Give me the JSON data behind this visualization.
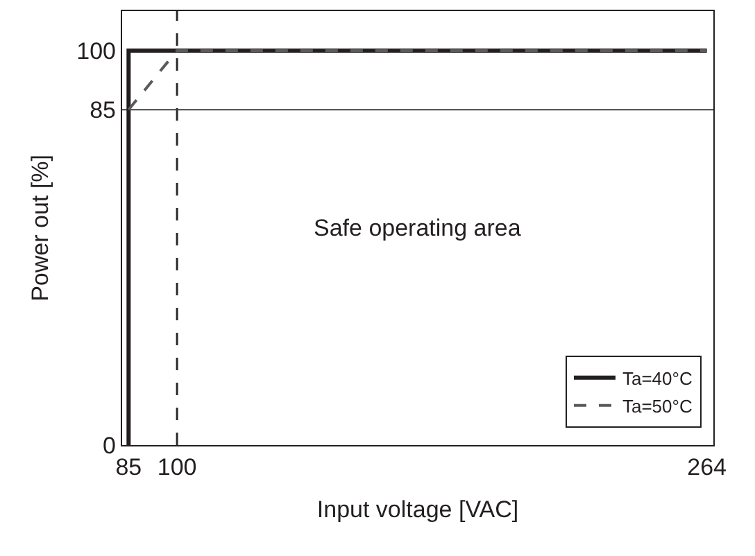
{
  "chart_data": {
    "type": "line",
    "xlabel": "Input voltage [VAC]",
    "ylabel": "Power out [%]",
    "xlim": [
      83,
      266
    ],
    "xticks": [
      85,
      100,
      264
    ],
    "ylim": [
      0,
      110
    ],
    "yticks": [
      0,
      85,
      100
    ],
    "grid": false,
    "legend": "bottom right",
    "marker": "none",
    "series": [
      {
        "name": "Ta=40°C",
        "color": "#231f20",
        "line_style": "solid",
        "x": [
          85,
          85,
          264
        ],
        "values": [
          0,
          100,
          100
        ]
      },
      {
        "name": "Ta=50°C",
        "color": "#5a5a5a",
        "line_style": "dashed",
        "x": [
          85,
          100,
          264
        ],
        "values": [
          85,
          100,
          100
        ]
      }
    ],
    "ref_lines": [
      {
        "axis": "x",
        "value": 100,
        "label": null,
        "color": "#2a2a2a",
        "line_style": "dashed"
      },
      {
        "axis": "y",
        "value": 85,
        "label": null,
        "color": "#404040",
        "line_style": "solid"
      }
    ],
    "annotations": [
      "Safe operating area"
    ]
  }
}
